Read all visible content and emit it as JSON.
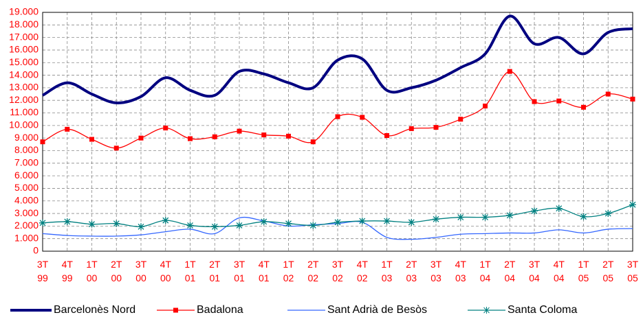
{
  "chart_data": {
    "type": "line",
    "categories": [
      "3T 99",
      "4T 99",
      "1T 00",
      "2T 00",
      "3T 00",
      "4T 00",
      "1T 01",
      "2T 01",
      "3T 01",
      "4T 01",
      "1T 02",
      "2T 02",
      "3T 02",
      "4T 02",
      "1T 03",
      "2T 03",
      "3T 03",
      "4T 03",
      "1T 04",
      "2T 04",
      "3T 04",
      "4T 04",
      "1T 05",
      "2T 05",
      "3T 05"
    ],
    "series": [
      {
        "name": "Barcelonès Nord",
        "color": "#000080",
        "marker": "none",
        "values": [
          12400,
          13400,
          12500,
          11800,
          12300,
          13800,
          12800,
          12400,
          14300,
          14100,
          13400,
          13000,
          15200,
          15300,
          12800,
          13000,
          13600,
          14600,
          15700,
          18700,
          16500,
          17000,
          15700,
          17400,
          17700
        ]
      },
      {
        "name": "Badalona",
        "color": "#ff0000",
        "marker": "square",
        "values": [
          8700,
          9700,
          8900,
          8200,
          9000,
          9800,
          8950,
          9100,
          9550,
          9250,
          9150,
          8700,
          10700,
          10650,
          9200,
          9750,
          9850,
          10500,
          11550,
          14300,
          11900,
          11950,
          11450,
          12500,
          12100
        ]
      },
      {
        "name": "Sant Adrià de Besòs",
        "color": "#3366ff",
        "marker": "none",
        "values": [
          1400,
          1250,
          1200,
          1200,
          1300,
          1550,
          1750,
          1400,
          2650,
          2400,
          2000,
          2100,
          2200,
          2300,
          1100,
          950,
          1100,
          1350,
          1400,
          1450,
          1450,
          1700,
          1450,
          1750,
          1800
        ]
      },
      {
        "name": "Santa Coloma",
        "color": "#008080",
        "marker": "star",
        "values": [
          2250,
          2350,
          2150,
          2200,
          1950,
          2450,
          2050,
          1950,
          2050,
          2350,
          2200,
          2050,
          2300,
          2400,
          2400,
          2300,
          2550,
          2700,
          2700,
          2850,
          3200,
          3400,
          2750,
          3000,
          3700
        ]
      }
    ],
    "ylim": [
      0,
      19000
    ],
    "yticks": [
      0,
      {
        "value": 1000,
        "label": "1.000"
      },
      {
        "value": 2000,
        "label": "2.000"
      },
      {
        "value": 3000,
        "label": "3.000"
      },
      {
        "value": 4000,
        "label": "4.000"
      },
      {
        "value": 5000,
        "label": "5.000"
      },
      {
        "value": 6000,
        "label": "6.000"
      },
      {
        "value": 7000,
        "label": "7.000"
      },
      {
        "value": 8000,
        "label": "8.000"
      },
      {
        "value": 9000,
        "label": "9.000"
      },
      {
        "value": 10000,
        "label": "10.000"
      },
      {
        "value": 11000,
        "label": "11.000"
      },
      {
        "value": 12000,
        "label": "12.000"
      },
      {
        "value": 13000,
        "label": "13.000"
      },
      {
        "value": 14000,
        "label": "14.000"
      },
      {
        "value": 15000,
        "label": "15.000"
      },
      {
        "value": 16000,
        "label": "16.000"
      },
      {
        "value": 17000,
        "label": "17.000"
      },
      {
        "value": 18000,
        "label": "18.000"
      },
      {
        "value": 19000,
        "label": "19.000"
      }
    ],
    "grid": true,
    "tick_color": "#ff0000",
    "legend": "bottom"
  }
}
